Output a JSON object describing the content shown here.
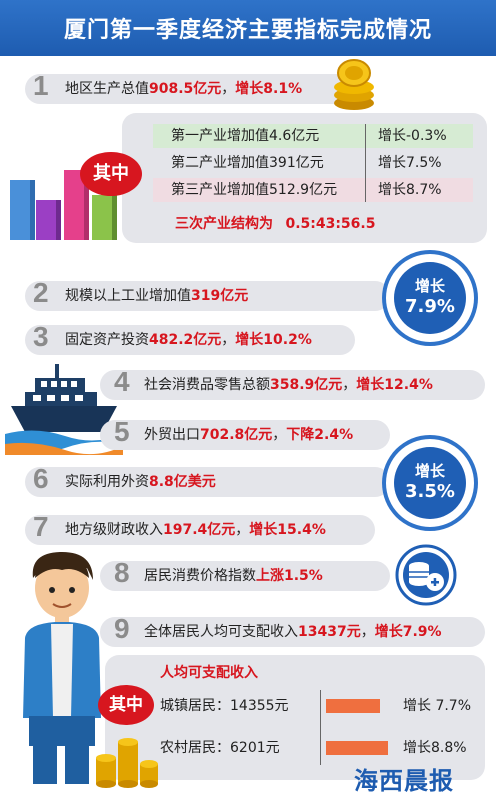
{
  "title": "厦门第一季度经济主要指标完成情况",
  "gdp": {
    "num": "1",
    "label": "地区生产总值",
    "value": "908.5亿元",
    "sep": "，",
    "growth": "增长8.1%"
  },
  "industry_breakdown": {
    "tag": "其中",
    "rows": [
      {
        "name": "第一产业增加值4.6亿元",
        "growth": "增长-0.3%",
        "bg": "#d6ebd3"
      },
      {
        "name": "第二产业增加值391亿元",
        "growth": "增长7.5%",
        "bg": "#e4e5ea"
      },
      {
        "name": "第三产业增加值512.9亿元",
        "growth": "增长8.7%",
        "bg": "#f0dce2"
      }
    ],
    "structure_label": "三次产业结构为",
    "structure_value": "0.5:43:56.5"
  },
  "indicators": [
    {
      "num": "2",
      "label": "规模以上工业增加值",
      "value": "319亿元",
      "sep": "",
      "growth": ""
    },
    {
      "num": "3",
      "label": "固定资产投资",
      "value": "482.2亿元",
      "sep": "，",
      "growth": "增长10.2%"
    },
    {
      "num": "4",
      "label": "社会消费品零售总额",
      "value": "358.9亿元",
      "sep": "，",
      "growth": "增长12.4%"
    },
    {
      "num": "5",
      "label": "外贸出口",
      "value": "702.8亿元",
      "sep": "，",
      "growth": "下降2.4%"
    },
    {
      "num": "6",
      "label": "实际利用外资",
      "value": "8.8亿美元",
      "sep": "",
      "growth": ""
    },
    {
      "num": "7",
      "label": "地方级财政收入",
      "value": "197.4亿元",
      "sep": "，",
      "growth": "增长15.4%"
    },
    {
      "num": "8",
      "label": "居民消费价格指数",
      "value": "上涨1.5%",
      "sep": "",
      "growth": ""
    },
    {
      "num": "9",
      "label": "全体居民人均可支配收入",
      "value": "13437元",
      "sep": "，",
      "growth": "增长7.9%"
    }
  ],
  "badges": [
    {
      "line1": "增长",
      "line2": "7.9%"
    },
    {
      "line1": "增长",
      "line2": "3.5%"
    }
  ],
  "income": {
    "title": "人均可支配收入",
    "tag": "其中",
    "rows": [
      {
        "name": "城镇居民：14355元",
        "growth": "增长 7.7%",
        "growth_pct": 7.7
      },
      {
        "name": "农村居民：6201元",
        "growth": "增长8.8%",
        "growth_pct": 8.8
      }
    ]
  },
  "colors": {
    "brand_blue": "#1e5cb0",
    "highlight_red": "#d7161f",
    "panel_gray": "#e4e5ea",
    "bar_orange": "#ef6f3f"
  },
  "logo": "海西晨报"
}
